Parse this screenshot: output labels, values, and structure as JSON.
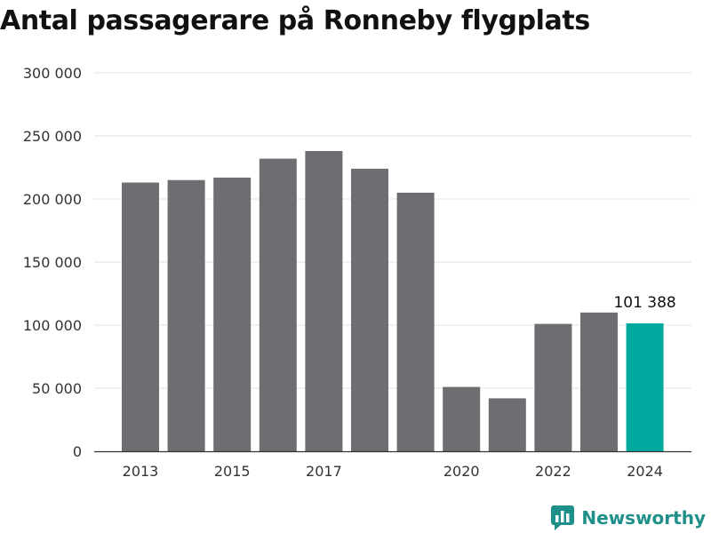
{
  "title": "Antal passagerare på Ronneby flygplats",
  "brand": {
    "name": "Newsworthy",
    "icon": "bar-chart-logo-icon"
  },
  "colors": {
    "bar": "#6e6d72",
    "highlight": "#00a99d",
    "grid": "#e3e3e3",
    "axis": "#333333",
    "brand": "#1f8f8a"
  },
  "chart_data": {
    "type": "bar",
    "title": "Antal passagerare på Ronneby flygplats",
    "xlabel": "",
    "ylabel": "",
    "x": [
      2013,
      2014,
      2015,
      2016,
      2017,
      2018,
      2019,
      2020,
      2021,
      2022,
      2023,
      2024
    ],
    "values": [
      213000,
      215000,
      217000,
      232000,
      238000,
      224000,
      205000,
      51000,
      42000,
      101000,
      110000,
      101388
    ],
    "highlight_index": 11,
    "data_labels": [
      {
        "index": 11,
        "text": "101 388"
      }
    ],
    "ylim": [
      0,
      300000
    ],
    "y_ticks": [
      0,
      50000,
      100000,
      150000,
      200000,
      250000,
      300000
    ],
    "y_tick_labels": [
      "0",
      "50 000",
      "100 000",
      "150 000",
      "200 000",
      "250 000",
      "300 000"
    ],
    "x_tick_labels": [
      "2013",
      "2015",
      "2017",
      "2020",
      "2022",
      "2024"
    ],
    "grid": true
  }
}
